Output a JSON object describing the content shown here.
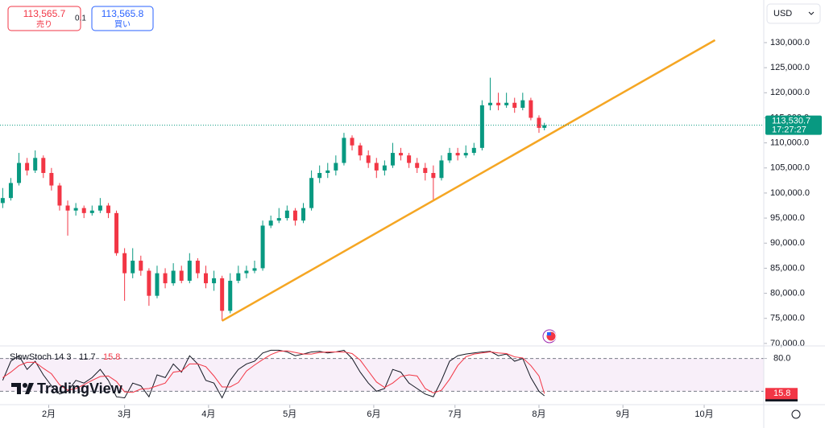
{
  "header": {
    "sell_price": "113,565.7",
    "sell_label": "売り",
    "spread": "0.1",
    "buy_price": "113,565.8",
    "buy_label": "買い",
    "currency": "USD"
  },
  "logo": "TradingView",
  "chart_data": [
    {
      "type": "candlestick",
      "x": [
        1,
        4,
        7,
        10,
        13,
        16,
        19,
        22,
        25,
        28,
        31,
        34,
        37,
        40,
        43,
        46,
        49,
        52,
        55,
        58,
        61,
        64,
        67,
        70,
        73,
        76,
        79,
        82,
        85,
        88,
        91,
        94,
        97,
        100,
        103,
        106,
        109,
        112,
        115,
        118,
        121,
        124,
        127,
        130,
        133,
        136,
        139,
        142,
        145,
        148,
        151,
        154,
        157,
        160,
        163,
        166,
        169,
        172,
        175,
        178,
        181,
        184,
        187,
        190,
        193,
        196,
        199,
        201
      ],
      "open": [
        98000,
        99000,
        102000,
        106000,
        104500,
        107000,
        104000,
        101500,
        97500,
        96500,
        97000,
        96000,
        96500,
        97500,
        96000,
        88000,
        84000,
        86500,
        84500,
        79500,
        84000,
        82000,
        84500,
        82500,
        86500,
        84000,
        82000,
        83000,
        76500,
        82500,
        84000,
        84500,
        85000,
        93500,
        94500,
        95000,
        96500,
        94500,
        97000,
        103000,
        104000,
        104500,
        106000,
        111000,
        109500,
        107500,
        106000,
        104500,
        105500,
        108000,
        107500,
        106000,
        105000,
        104000,
        103000,
        106500,
        108000,
        107500,
        108000,
        109000,
        117500,
        118000,
        117500,
        118000,
        117000,
        118500,
        115000,
        113000
      ],
      "high": [
        101000,
        103000,
        108000,
        107000,
        108500,
        107500,
        105000,
        102000,
        98500,
        98000,
        97500,
        97500,
        99000,
        98000,
        96500,
        89000,
        89000,
        87500,
        85000,
        85500,
        85000,
        86000,
        85500,
        88000,
        87000,
        85500,
        84500,
        83500,
        84000,
        85500,
        85500,
        86500,
        94500,
        95500,
        97000,
        97500,
        97000,
        98000,
        104500,
        105500,
        106000,
        107500,
        112000,
        111500,
        110000,
        108500,
        107000,
        106500,
        110000,
        109000,
        108000,
        107000,
        106000,
        105500,
        107500,
        109000,
        109000,
        109500,
        110000,
        118500,
        123000,
        120000,
        120000,
        119000,
        120000,
        119000,
        115500,
        114000
      ],
      "low": [
        97000,
        98500,
        101500,
        103500,
        104000,
        103000,
        100500,
        96500,
        91500,
        95500,
        95000,
        95500,
        96000,
        95000,
        87500,
        78500,
        83000,
        83500,
        77500,
        79000,
        81000,
        81500,
        82000,
        82000,
        83000,
        81000,
        80500,
        74500,
        76000,
        82000,
        83000,
        84000,
        84500,
        93000,
        94000,
        94500,
        93500,
        94000,
        96500,
        102000,
        103000,
        103500,
        105500,
        108500,
        106500,
        105000,
        103000,
        103500,
        105000,
        106500,
        105000,
        104000,
        102500,
        98500,
        102500,
        106000,
        106500,
        107000,
        107500,
        108500,
        116500,
        116500,
        117000,
        116000,
        116500,
        114500,
        112000,
        112500
      ],
      "close": [
        99000,
        102000,
        106000,
        104500,
        107000,
        104000,
        101500,
        97500,
        96500,
        97000,
        96000,
        96500,
        97500,
        96000,
        88000,
        84000,
        86500,
        84500,
        79500,
        84000,
        82000,
        84500,
        82500,
        86500,
        84000,
        82000,
        83000,
        76500,
        82500,
        84000,
        84500,
        85000,
        93500,
        94500,
        95000,
        96500,
        94500,
        97000,
        103000,
        104000,
        104500,
        106000,
        111000,
        109500,
        107500,
        106000,
        104500,
        105500,
        108000,
        107500,
        106000,
        105000,
        104000,
        103000,
        106500,
        108000,
        107500,
        108000,
        109000,
        117500,
        118000,
        117500,
        118000,
        117000,
        118500,
        115000,
        113000,
        113530.7
      ],
      "up_color": "#089981",
      "down_color": "#f23645",
      "last_price_label": "113,530.7",
      "last_time_label": "17:27:27",
      "xlim": [
        0,
        282
      ],
      "xticks": [
        {
          "value": 18,
          "label": "2月"
        },
        {
          "value": 46,
          "label": "3月"
        },
        {
          "value": 77,
          "label": "4月"
        },
        {
          "value": 107,
          "label": "5月"
        },
        {
          "value": 138,
          "label": "6月"
        },
        {
          "value": 168,
          "label": "7月"
        },
        {
          "value": 199,
          "label": "8月"
        },
        {
          "value": 230,
          "label": "9月"
        },
        {
          "value": 260,
          "label": "10月"
        }
      ],
      "ylim": [
        69500,
        138500
      ],
      "yticks": [
        {
          "value": 70000,
          "label": "70,000.0"
        },
        {
          "value": 75000,
          "label": "75,000.0"
        },
        {
          "value": 80000,
          "label": "80,000.0"
        },
        {
          "value": 85000,
          "label": "85,000.0"
        },
        {
          "value": 90000,
          "label": "90,000.0"
        },
        {
          "value": 95000,
          "label": "95,000.0"
        },
        {
          "value": 100000,
          "label": "100,000.0"
        },
        {
          "value": 105000,
          "label": "105,000.0"
        },
        {
          "value": 110000,
          "label": "110,000.0"
        },
        {
          "value": 115000,
          "label": "115,000.0"
        },
        {
          "value": 120000,
          "label": "120,000.0"
        },
        {
          "value": 125000,
          "label": "125,000.0"
        },
        {
          "value": 130000,
          "label": "130,000.0"
        }
      ],
      "trendline": {
        "x": [
          82,
          264
        ],
        "y": [
          74500,
          130500
        ],
        "color": "#f5a623"
      }
    },
    {
      "type": "line",
      "title": "SlowStoch 14 3",
      "x": [
        1,
        4,
        7,
        10,
        13,
        16,
        19,
        22,
        25,
        28,
        31,
        34,
        37,
        40,
        43,
        46,
        49,
        52,
        55,
        58,
        61,
        64,
        67,
        70,
        73,
        76,
        79,
        82,
        85,
        88,
        91,
        94,
        97,
        100,
        103,
        106,
        109,
        112,
        115,
        118,
        121,
        124,
        127,
        130,
        133,
        136,
        139,
        142,
        145,
        148,
        151,
        154,
        157,
        160,
        163,
        166,
        169,
        172,
        175,
        178,
        181,
        184,
        187,
        190,
        193,
        196,
        199,
        201
      ],
      "series": [
        {
          "color": "#131722",
          "values": [
            40,
            75,
            85,
            60,
            75,
            50,
            30,
            15,
            20,
            40,
            35,
            45,
            60,
            40,
            10,
            8,
            35,
            30,
            10,
            50,
            45,
            70,
            55,
            85,
            70,
            40,
            35,
            8,
            40,
            60,
            70,
            75,
            90,
            95,
            95,
            92,
            85,
            88,
            92,
            93,
            90,
            92,
            95,
            80,
            55,
            35,
            20,
            25,
            60,
            55,
            35,
            25,
            15,
            10,
            40,
            75,
            85,
            88,
            90,
            92,
            93,
            85,
            88,
            75,
            80,
            45,
            20,
            11.7
          ]
        },
        {
          "color": "#f23645",
          "values": [
            45,
            55,
            67,
            73,
            73,
            62,
            52,
            32,
            22,
            25,
            32,
            40,
            47,
            48,
            38,
            19,
            18,
            24,
            25,
            30,
            35,
            55,
            57,
            70,
            70,
            65,
            48,
            28,
            28,
            36,
            57,
            68,
            78,
            87,
            93,
            94,
            91,
            88,
            88,
            91,
            92,
            92,
            92,
            89,
            77,
            57,
            37,
            27,
            35,
            47,
            50,
            48,
            25,
            17,
            22,
            42,
            67,
            83,
            88,
            90,
            92,
            90,
            89,
            83,
            81,
            67,
            48,
            15.8
          ]
        }
      ],
      "xlim": [
        0,
        282
      ],
      "ylim": [
        0,
        100
      ],
      "yticks": [
        {
          "value": 80,
          "label": "80.0"
        }
      ],
      "levels": [
        80,
        20
      ],
      "band_color": "#f3e5f5"
    }
  ]
}
